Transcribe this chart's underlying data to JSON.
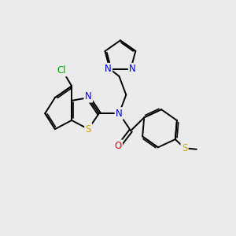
{
  "background_color": "#ebebeb",
  "figsize": [
    3.0,
    3.0
  ],
  "dpi": 100,
  "atom_colors": {
    "C": "#000000",
    "N": "#0000ff",
    "O": "#ff0000",
    "S": "#ccaa00",
    "Cl": "#00aa00"
  },
  "bond_color": "#000000",
  "bond_width": 1.4,
  "font_size_atom": 8.5,
  "font_size_small": 7.5
}
